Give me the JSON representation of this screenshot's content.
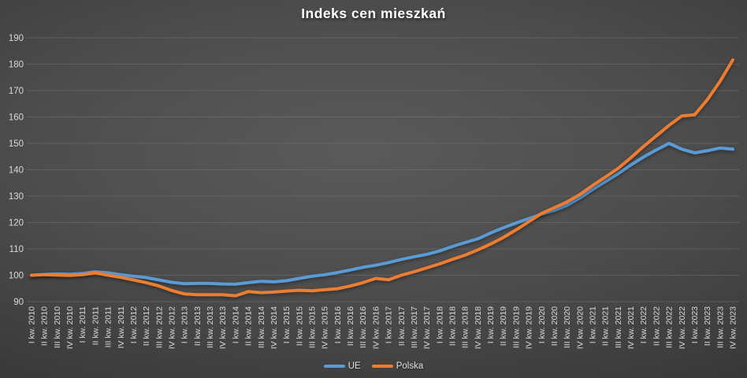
{
  "chart_data": {
    "type": "line",
    "title": "Indeks cen mieszkań",
    "xlabel": "",
    "ylabel": "",
    "ylim": [
      90,
      190
    ],
    "ytick_step": 10,
    "y_ticks": [
      90,
      100,
      110,
      120,
      130,
      140,
      150,
      160,
      170,
      180,
      190
    ],
    "grid": "horizontal",
    "legend_position": "bottom-center",
    "background_color": "#454545",
    "text_color": "#D9D9D9",
    "gridline_color": "#7A7A7A",
    "x_categories": [
      "I kw. 2010",
      "II kw. 2010",
      "III kw. 2010",
      "IV kw. 2010",
      "I kw. 2011",
      "II kw. 2011",
      "III kw. 2011",
      "IV kw. 2011",
      "I kw. 2012",
      "II kw. 2012",
      "III kw. 2012",
      "IV kw. 2012",
      "I kw. 2013",
      "II kw. 2013",
      "III kw. 2013",
      "IV kw. 2013",
      "I kw. 2014",
      "II kw. 2014",
      "III kw. 2014",
      "IV kw. 2014",
      "I kw. 2015",
      "II kw. 2015",
      "III kw. 2015",
      "IV kw. 2015",
      "I kw. 2016",
      "II kw. 2016",
      "III kw. 2016",
      "IV kw. 2016",
      "I kw. 2017",
      "II kw. 2017",
      "III kw. 2017",
      "IV kw. 2017",
      "I kw. 2018",
      "II kw. 2018",
      "III kw. 2018",
      "IV kw. 2018",
      "I kw. 2019",
      "II kw. 2019",
      "III kw. 2019",
      "IV kw. 2019",
      "I kw. 2020",
      "II kw. 2020",
      "III kw. 2020",
      "IV kw. 2020",
      "I kw. 2021",
      "II kw. 2021",
      "III kw. 2021",
      "IV kw. 2021",
      "I kw. 2022",
      "II kw. 2022",
      "III kw. 2022",
      "IV kw. 2022",
      "I kw. 2023",
      "II kw. 2023",
      "III kw. 2023",
      "IV kw. 2023"
    ],
    "series": [
      {
        "name": "UE",
        "color": "#5B9BD5",
        "values": [
          100.0,
          100.3,
          100.5,
          100.4,
          100.7,
          101.3,
          100.9,
          100.2,
          99.6,
          99.1,
          98.2,
          97.3,
          96.8,
          96.9,
          96.9,
          96.7,
          96.6,
          97.2,
          97.7,
          97.5,
          97.9,
          98.8,
          99.6,
          100.2,
          101.0,
          102.0,
          103.0,
          103.8,
          104.8,
          106.0,
          107.0,
          107.9,
          109.2,
          110.9,
          112.4,
          113.8,
          116.0,
          118.0,
          119.8,
          121.5,
          123.2,
          124.6,
          126.5,
          129.3,
          132.5,
          135.5,
          138.5,
          141.8,
          144.8,
          147.5,
          150.0,
          147.8,
          146.4,
          147.2,
          148.2,
          147.8
        ]
      },
      {
        "name": "Polska",
        "color": "#ED7D31",
        "values": [
          100.0,
          100.2,
          100.1,
          99.9,
          100.2,
          100.9,
          100.0,
          99.2,
          98.2,
          97.2,
          95.9,
          94.2,
          92.9,
          92.6,
          92.6,
          92.6,
          92.2,
          93.8,
          93.4,
          93.6,
          94.0,
          94.3,
          94.1,
          94.5,
          94.9,
          95.9,
          97.2,
          98.8,
          98.3,
          100.0,
          101.3,
          102.8,
          104.3,
          106.0,
          107.6,
          109.6,
          111.8,
          114.3,
          117.2,
          120.3,
          123.4,
          125.6,
          127.8,
          130.6,
          134.0,
          137.2,
          140.5,
          144.5,
          148.8,
          152.8,
          156.8,
          160.4,
          160.8,
          166.5,
          173.5,
          181.6
        ]
      }
    ]
  }
}
